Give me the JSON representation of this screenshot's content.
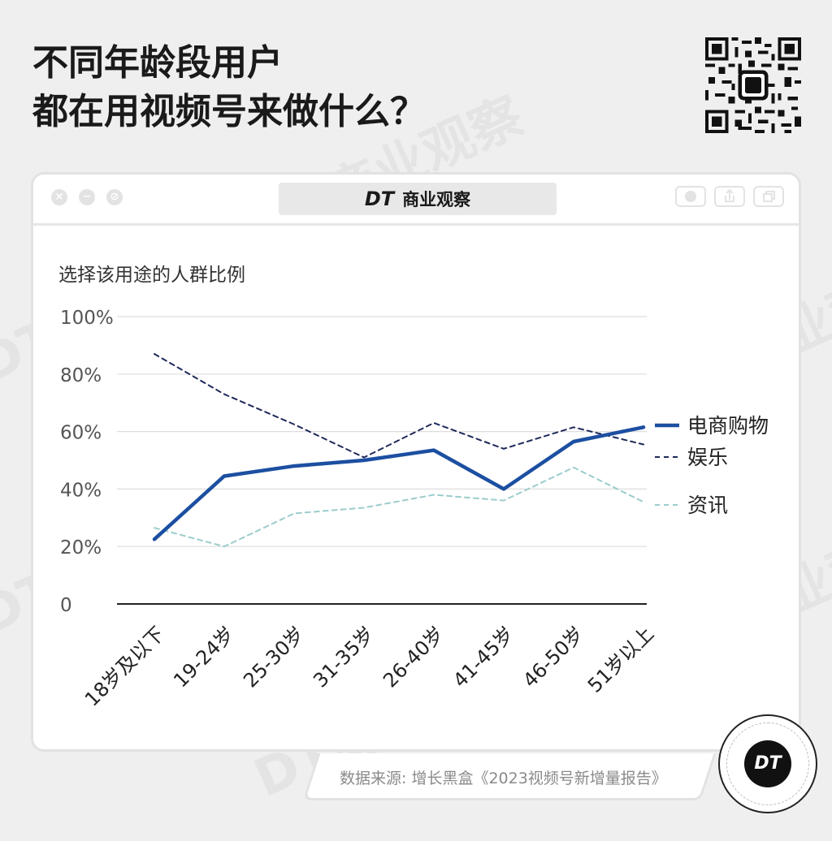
{
  "header": {
    "title_line1": "不同年龄段用户",
    "title_line2": "都在用视频号来做什么？"
  },
  "brand": {
    "logo_text": "DT",
    "name": "商业观察",
    "watermark": "DT商业观察"
  },
  "colors": {
    "background": "#efefef",
    "ecommerce": "#1c4fa1",
    "entertainment": "#1e2a5a",
    "info": "#9ccccc",
    "grid": "#dddddd"
  },
  "footer": {
    "source": "数据来源: 增长黑盒《2023视频号新增量报告》"
  },
  "chart_data": {
    "type": "line",
    "title": "",
    "ylabel": "选择该用途的人群比例",
    "xlabel": "",
    "categories": [
      "18岁及以下",
      "19-24岁",
      "25-30岁",
      "31-35岁",
      "26-40岁",
      "41-45岁",
      "46-50岁",
      "51岁以上"
    ],
    "yticks": [
      "0",
      "20%",
      "40%",
      "60%",
      "80%",
      "100%"
    ],
    "ylim": [
      0,
      100
    ],
    "grid": true,
    "legend": "right",
    "series": [
      {
        "name": "电商购物",
        "values": [
          22.5,
          44.5,
          48,
          50,
          53.5,
          40,
          56.5,
          61.5
        ],
        "color": "#1c4fa1",
        "style": "solid"
      },
      {
        "name": "娱乐",
        "values": [
          87,
          73,
          62.5,
          51,
          63,
          54,
          61.5,
          55.5
        ],
        "color": "#1e2a5a",
        "style": "dashed"
      },
      {
        "name": "资讯",
        "values": [
          26.5,
          20,
          31.5,
          33.5,
          38,
          36,
          47.5,
          35.5
        ],
        "color": "#9ccccc",
        "style": "dashed"
      }
    ]
  }
}
